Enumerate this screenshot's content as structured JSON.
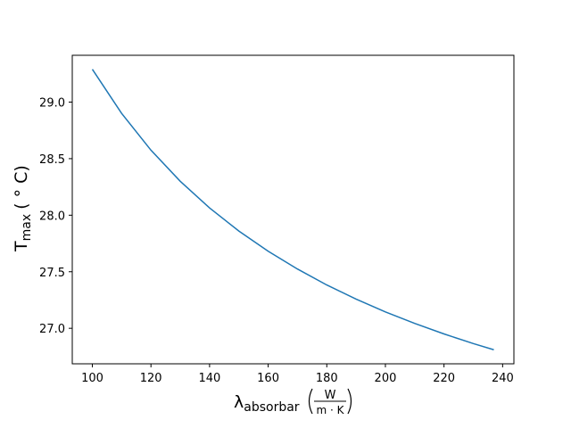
{
  "chart_data": {
    "type": "line",
    "x": [
      100,
      110,
      120,
      130,
      140,
      150,
      160,
      170,
      180,
      190,
      200,
      210,
      220,
      230,
      237
    ],
    "series": [
      {
        "color": "#1f77b4",
        "values": [
          29.29,
          28.9,
          28.575,
          28.3,
          28.064,
          27.86,
          27.681,
          27.524,
          27.383,
          27.258,
          27.145,
          27.043,
          26.95,
          26.865,
          26.81
        ]
      }
    ],
    "xlim": [
      93.15,
      243.85
    ],
    "ylim": [
      26.686,
      29.414
    ],
    "xticks": [
      100,
      120,
      140,
      160,
      180,
      200,
      220,
      240
    ],
    "yticks": [
      {
        "value": 27,
        "label": "27.0"
      },
      27.5,
      {
        "value": 28,
        "label": "28.0"
      },
      28.5,
      {
        "value": 29,
        "label": "29.0"
      }
    ],
    "xlabel": {
      "symbol": "λ",
      "subscript": "absorbar",
      "numerator": "W",
      "denominator": "m · K"
    },
    "ylabel": {
      "symbol": "T",
      "subscript": "max",
      "unit": "( ° C)"
    },
    "grid": false
  }
}
